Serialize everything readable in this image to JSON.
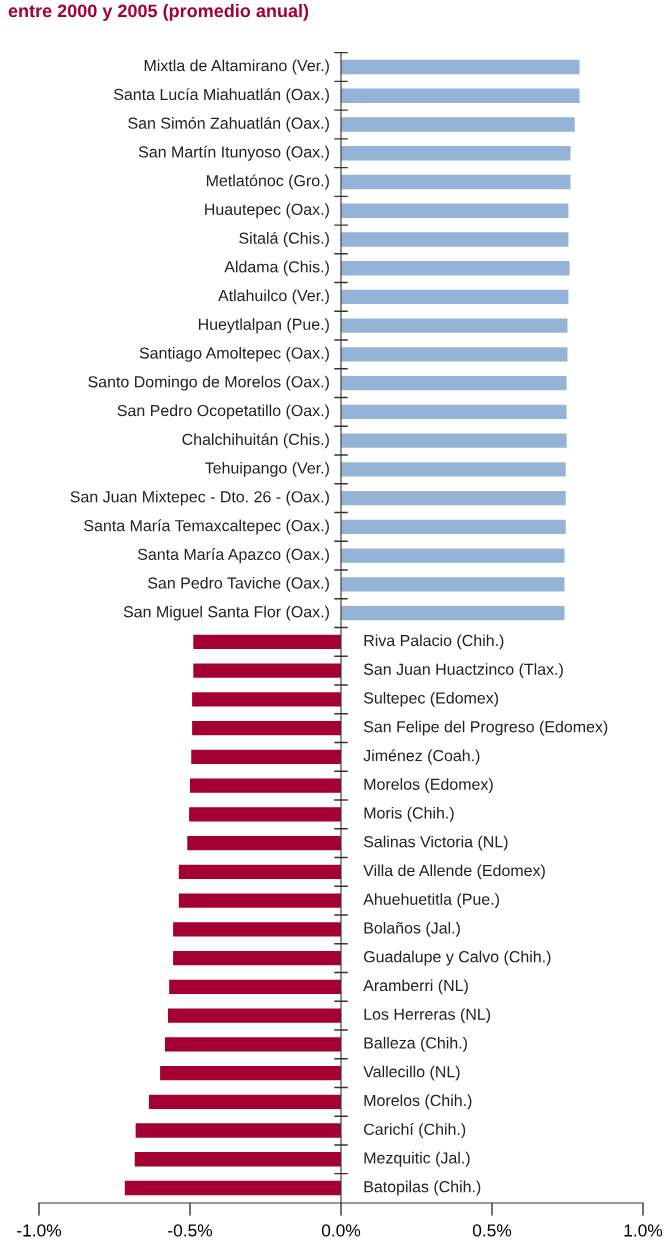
{
  "chart_data": {
    "type": "bar",
    "orientation": "horizontal",
    "title": "entre 2000 y 2005 (promedio anual)",
    "categories": [
      "Mixtla de Altamirano (Ver.)",
      "Santa Lucía Miahuatlán (Oax.)",
      "San Simón Zahuatlán (Oax.)",
      "San Martín Itunyoso (Oax.)",
      "Metlatónoc (Gro.)",
      "Huautepec (Oax.)",
      "Sitalá (Chis.)",
      "Aldama (Chis.)",
      "Atlahuilco (Ver.)",
      "Hueytlalpan (Pue.)",
      "Santiago Amoltepec (Oax.)",
      "Santo Domingo de Morelos (Oax.)",
      "San Pedro Ocopetatillo (Oax.)",
      "Chalchihuitán (Chis.)",
      "Tehuipango (Ver.)",
      "San Juan Mixtepec - Dto. 26 - (Oax.)",
      "Santa María Temaxcaltepec (Oax.)",
      "Santa María Apazco (Oax.)",
      "San Pedro Taviche (Oax.)",
      "San Miguel Santa Flor (Oax.)",
      "Riva Palacio (Chih.)",
      "San Juan Huactzinco (Tlax.)",
      "Sultepec (Edomex)",
      "San Felipe del Progreso (Edomex)",
      "Jiménez (Coah.)",
      "Morelos (Edomex)",
      "Moris (Chih.)",
      "Salinas Victoria (NL)",
      "Villa de Allende (Edomex)",
      "Ahuehuetitla (Pue.)",
      "Bolaños (Jal.)",
      "Guadalupe y Calvo (Chih.)",
      "Aramberri (NL)",
      "Los Herreras (NL)",
      "Balleza (Chih.)",
      "Vallecillo (NL)",
      "Morelos (Chih.)",
      "Carichí (Chih.)",
      "Mezquitic (Jal.)",
      "Batopilas (Chih.)"
    ],
    "values": [
      0.79,
      0.79,
      0.774,
      0.76,
      0.76,
      0.753,
      0.753,
      0.757,
      0.753,
      0.75,
      0.75,
      0.747,
      0.747,
      0.747,
      0.744,
      0.744,
      0.744,
      0.74,
      0.74,
      0.74,
      -0.489,
      -0.489,
      -0.493,
      -0.493,
      -0.496,
      -0.5,
      -0.503,
      -0.509,
      -0.537,
      -0.537,
      -0.556,
      -0.556,
      -0.569,
      -0.573,
      -0.583,
      -0.599,
      -0.636,
      -0.68,
      -0.683,
      -0.716
    ],
    "colors": [
      "#95b3d7",
      "#95b3d7",
      "#95b3d7",
      "#95b3d7",
      "#95b3d7",
      "#95b3d7",
      "#95b3d7",
      "#95b3d7",
      "#95b3d7",
      "#95b3d7",
      "#95b3d7",
      "#95b3d7",
      "#95b3d7",
      "#95b3d7",
      "#95b3d7",
      "#95b3d7",
      "#95b3d7",
      "#95b3d7",
      "#95b3d7",
      "#95b3d7",
      "#a50034",
      "#a50034",
      "#a50034",
      "#a50034",
      "#a50034",
      "#a50034",
      "#a50034",
      "#a50034",
      "#a50034",
      "#a50034",
      "#a50034",
      "#a50034",
      "#a50034",
      "#a50034",
      "#a50034",
      "#a50034",
      "#a50034",
      "#a50034",
      "#a50034",
      "#a50034"
    ],
    "xlim": [
      -1.0,
      1.0
    ],
    "xticks": [
      {
        "value": -1.0,
        "label": "-1.0%"
      },
      {
        "value": -0.5,
        "label": "-0.5%"
      },
      {
        "value": 0.0,
        "label": "0.0%"
      },
      {
        "value": 0.5,
        "label": "0.5%"
      },
      {
        "value": 1.0,
        "label": "1.0%"
      }
    ],
    "grid": false
  }
}
